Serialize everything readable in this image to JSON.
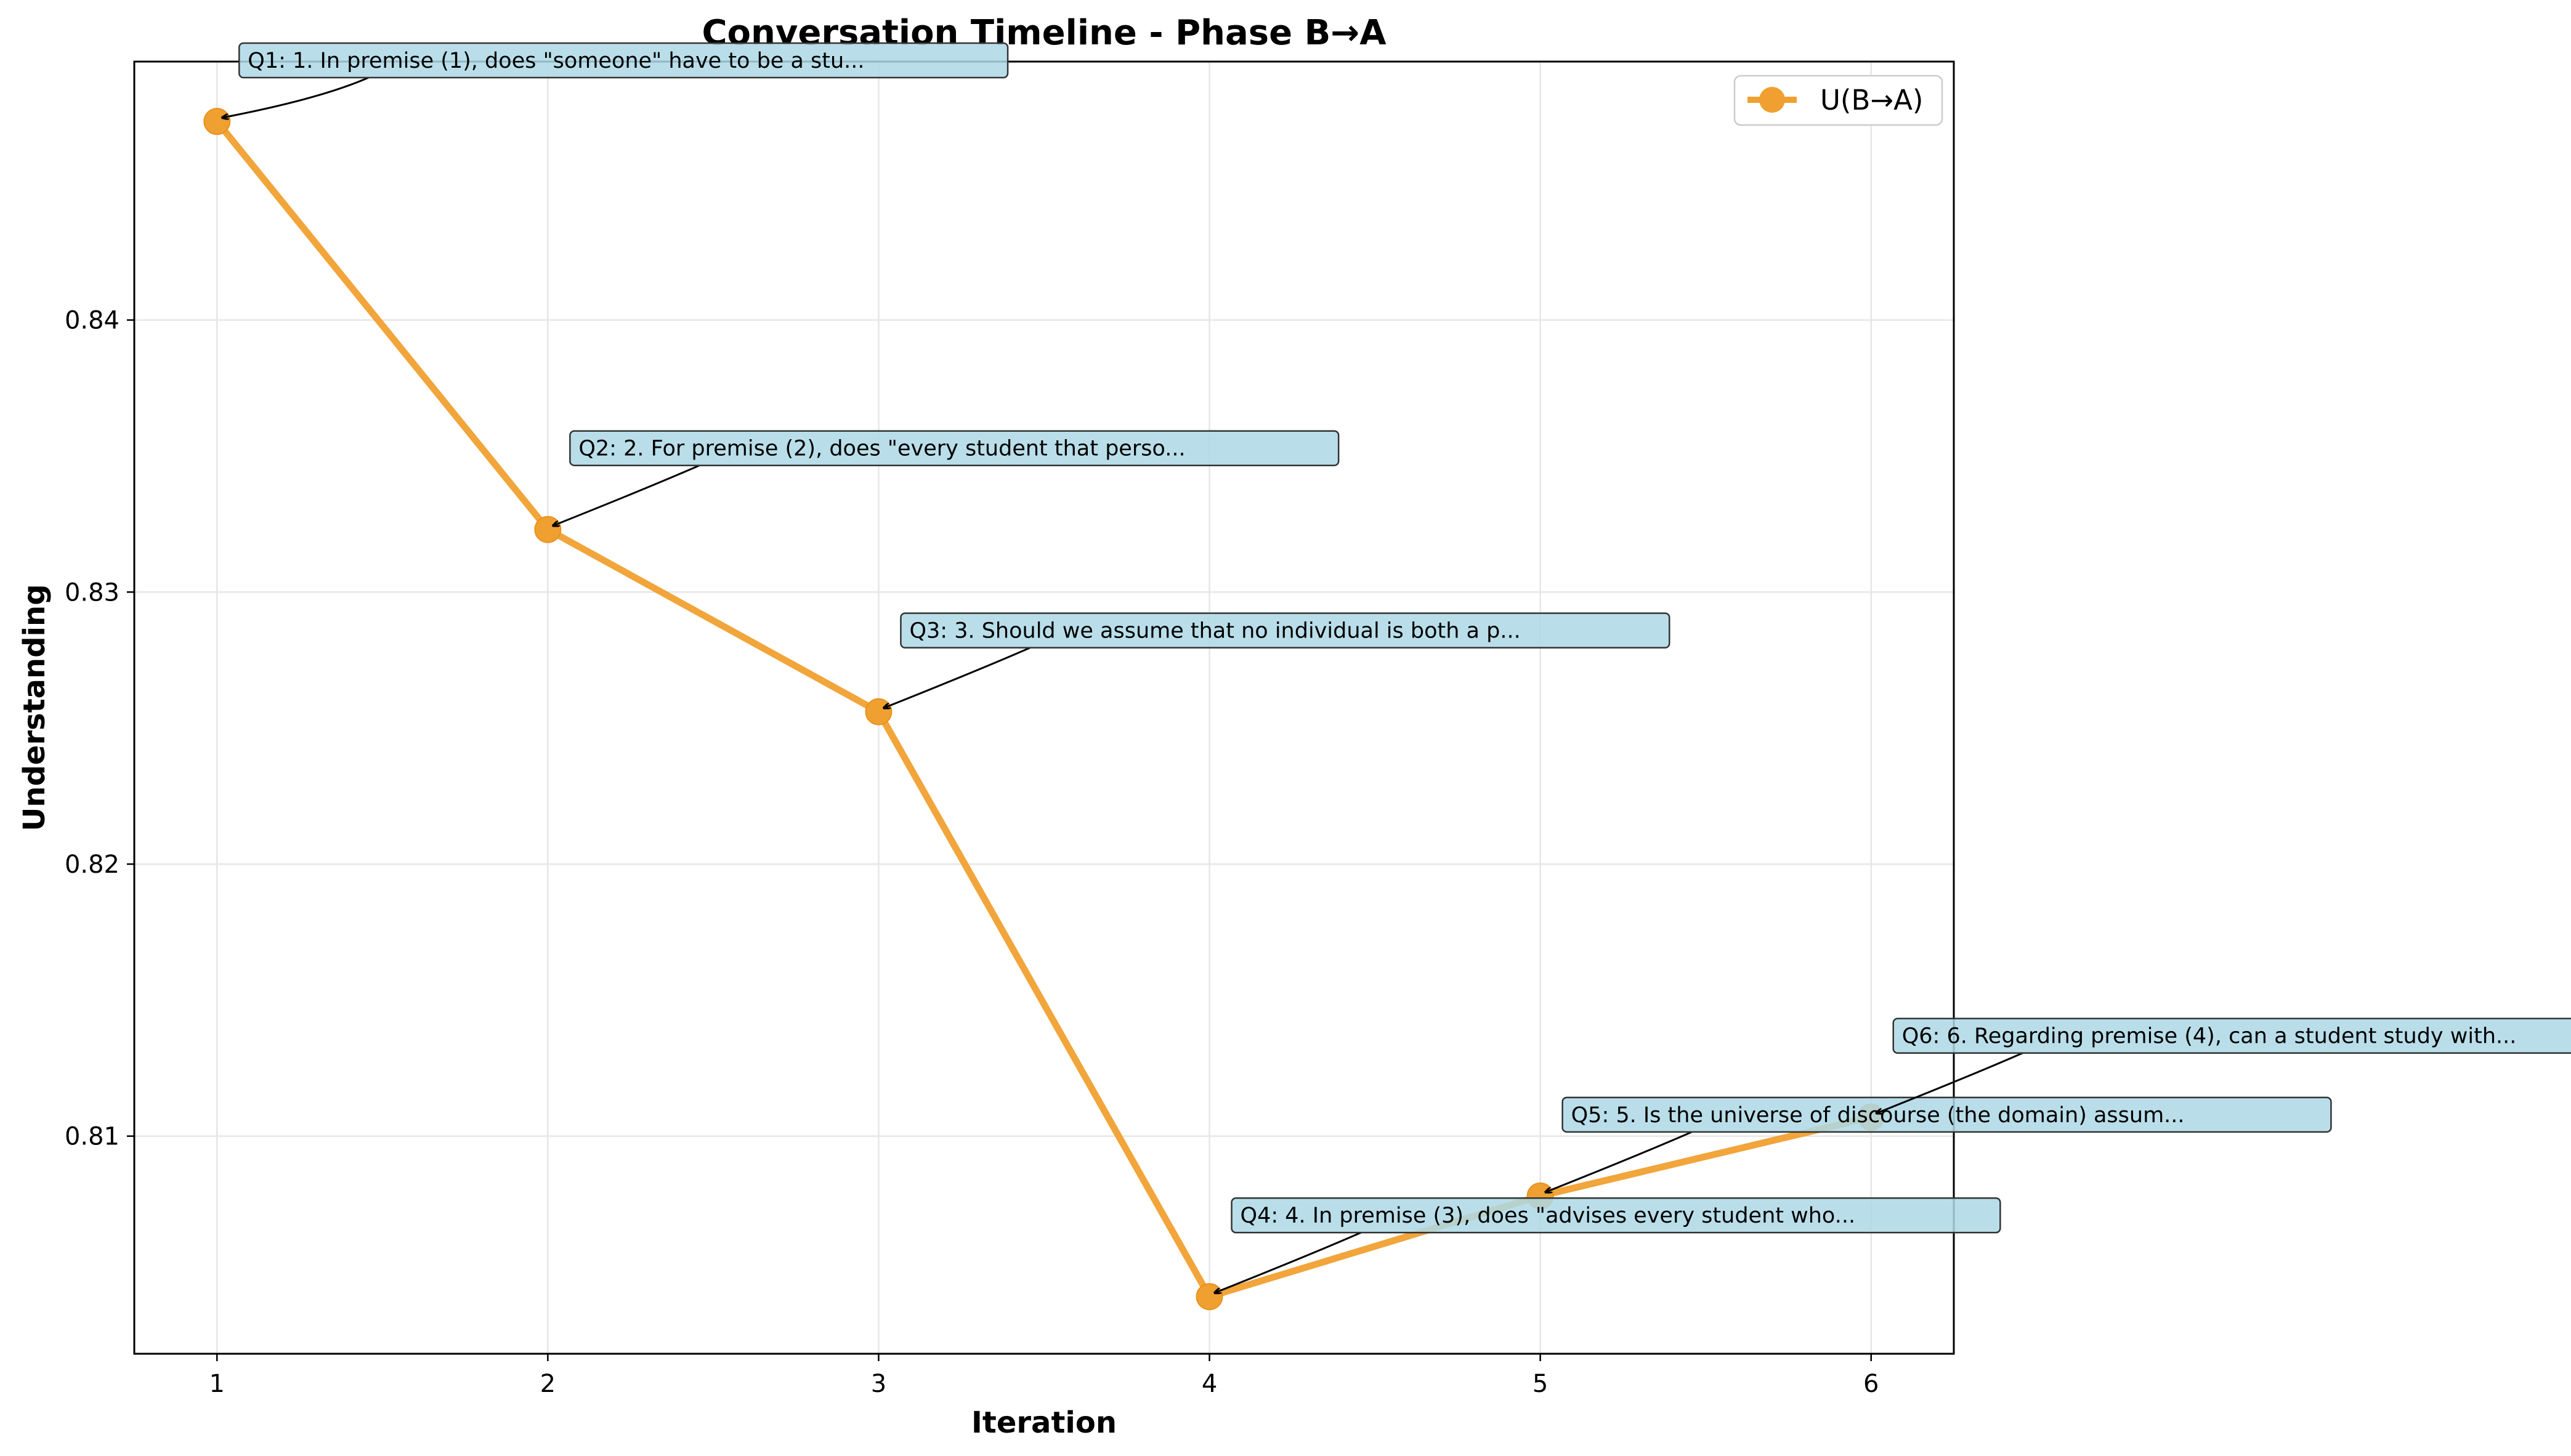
{
  "chart_data": {
    "type": "line",
    "title": "Conversation Timeline - Phase B→A",
    "xlabel": "Iteration",
    "ylabel": "Understanding",
    "xlim": [
      0.75,
      6.25
    ],
    "ylim": [
      0.802,
      0.8495
    ],
    "xticks": [
      1,
      2,
      3,
      4,
      5,
      6
    ],
    "yticks": [
      0.81,
      0.82,
      0.83,
      0.84
    ],
    "ytick_labels": [
      "0.81",
      "0.82",
      "0.83",
      "0.84"
    ],
    "grid": true,
    "legend_position": "top-right",
    "series": [
      {
        "name": "U(B→A)",
        "color": "#f0a030",
        "x": [
          1,
          2,
          3,
          4,
          5,
          6
        ],
        "y": [
          0.8473,
          0.8323,
          0.8256,
          0.8041,
          0.8078,
          0.8107
        ]
      }
    ],
    "annotations": [
      {
        "point": 1,
        "text": "Q1: 1. In premise (1), does \"someone\" have to be a stu..."
      },
      {
        "point": 2,
        "text": "Q2: 2. For premise (2), does \"every student that perso..."
      },
      {
        "point": 3,
        "text": "Q3: 3. Should we assume that no individual is both a p..."
      },
      {
        "point": 4,
        "text": "Q4: 4. In premise (3), does \"advises every student who..."
      },
      {
        "point": 5,
        "text": "Q5: 5. Is the universe of discourse (the domain) assum..."
      },
      {
        "point": 6,
        "text": "Q6: 6. Regarding premise (4), can a student study with..."
      }
    ],
    "annotation_box_color": "#add8e6"
  }
}
